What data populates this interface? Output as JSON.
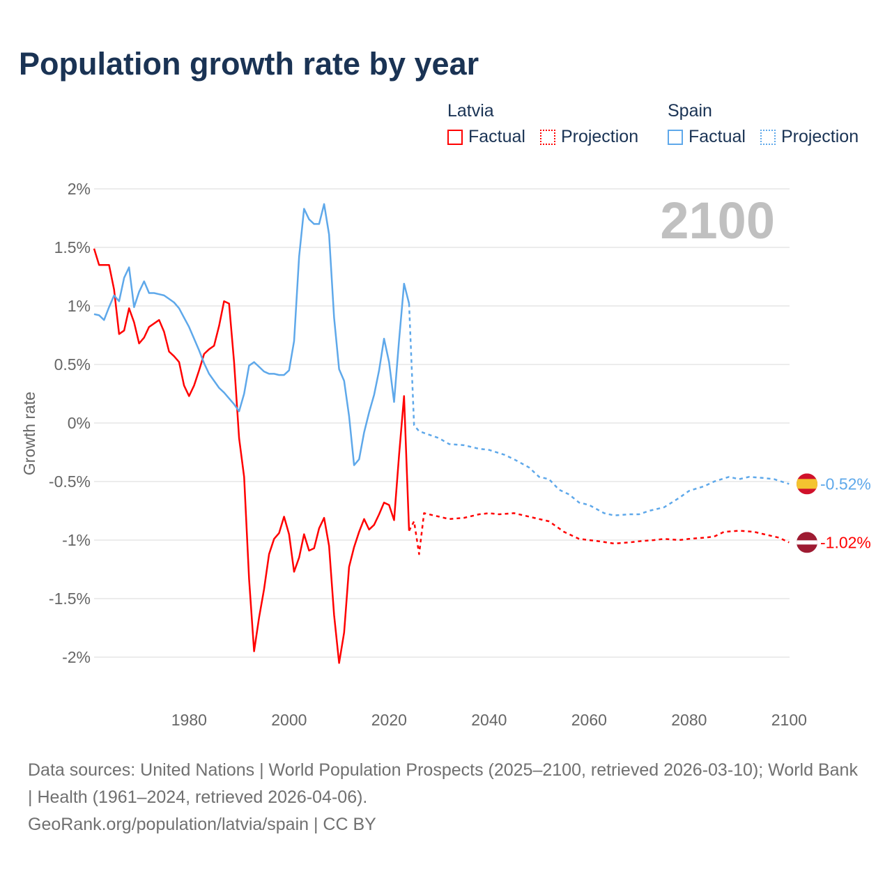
{
  "chart_data": {
    "type": "line",
    "title": "Population growth rate by year",
    "ylabel": "Growth rate",
    "xlabel": "",
    "xlim": [
      1961,
      2100
    ],
    "ylim": [
      -2.4,
      2.1
    ],
    "x_ticks": [
      1980,
      2000,
      2020,
      2040,
      2060,
      2080,
      2100
    ],
    "x_tick_labels": [
      "1980",
      "2000",
      "2020",
      "2040",
      "2060",
      "2080",
      "2100"
    ],
    "y_ticks": [
      2,
      1.5,
      1,
      0.5,
      0,
      -0.5,
      -1,
      -1.5,
      -2
    ],
    "y_tick_labels": [
      "2%",
      "1.5%",
      "1%",
      "0.5%",
      "0%",
      "-0.5%",
      "-1%",
      "-1.5%",
      "-2%"
    ],
    "grid": true,
    "year_watermark": "2100",
    "legend_placement": "top-right",
    "legend": {
      "groups": [
        {
          "name": "Latvia",
          "items": [
            "Factual",
            "Projection"
          ],
          "color": "#ff0000"
        },
        {
          "name": "Spain",
          "items": [
            "Factual",
            "Projection"
          ],
          "color": "#5ea8ea"
        }
      ]
    },
    "series": [
      {
        "name": "Latvia",
        "kind": "Factual",
        "color": "#ff0000",
        "x": [
          1961,
          1962,
          1963,
          1964,
          1965,
          1966,
          1967,
          1968,
          1969,
          1970,
          1971,
          1972,
          1973,
          1974,
          1975,
          1976,
          1977,
          1978,
          1979,
          1980,
          1981,
          1982,
          1983,
          1984,
          1985,
          1986,
          1987,
          1988,
          1989,
          1990,
          1991,
          1992,
          1993,
          1994,
          1995,
          1996,
          1997,
          1998,
          1999,
          2000,
          2001,
          2002,
          2003,
          2004,
          2005,
          2006,
          2007,
          2008,
          2009,
          2010,
          2011,
          2012,
          2013,
          2014,
          2015,
          2016,
          2017,
          2018,
          2019,
          2020,
          2021,
          2022,
          2023,
          2024
        ],
        "values": [
          1.49,
          1.35,
          1.35,
          1.35,
          1.14,
          0.76,
          0.79,
          0.98,
          0.86,
          0.68,
          0.73,
          0.82,
          0.85,
          0.88,
          0.78,
          0.61,
          0.57,
          0.52,
          0.32,
          0.23,
          0.32,
          0.45,
          0.59,
          0.63,
          0.66,
          0.83,
          1.04,
          1.02,
          0.52,
          -0.13,
          -0.46,
          -1.33,
          -1.95,
          -1.66,
          -1.42,
          -1.12,
          -0.99,
          -0.94,
          -0.8,
          -0.95,
          -1.27,
          -1.15,
          -0.95,
          -1.09,
          -1.07,
          -0.9,
          -0.81,
          -1.05,
          -1.64,
          -2.05,
          -1.79,
          -1.23,
          -1.06,
          -0.93,
          -0.82,
          -0.91,
          -0.87,
          -0.78,
          -0.68,
          -0.7,
          -0.83,
          -0.27,
          0.23,
          -0.92
        ]
      },
      {
        "name": "Latvia",
        "kind": "Projection",
        "color": "#ff0000",
        "x": [
          2024,
          2025,
          2026,
          2027,
          2030,
          2032,
          2035,
          2038,
          2040,
          2042,
          2045,
          2048,
          2050,
          2052,
          2055,
          2058,
          2060,
          2062,
          2065,
          2068,
          2070,
          2073,
          2075,
          2078,
          2080,
          2083,
          2085,
          2087,
          2090,
          2093,
          2095,
          2098,
          2100
        ],
        "values": [
          -0.92,
          -0.84,
          -1.12,
          -0.77,
          -0.8,
          -0.82,
          -0.81,
          -0.78,
          -0.77,
          -0.78,
          -0.77,
          -0.8,
          -0.82,
          -0.84,
          -0.93,
          -0.99,
          -1.0,
          -1.01,
          -1.03,
          -1.02,
          -1.01,
          -1.0,
          -0.99,
          -1.0,
          -0.99,
          -0.98,
          -0.97,
          -0.93,
          -0.92,
          -0.93,
          -0.95,
          -0.98,
          -1.02
        ]
      },
      {
        "name": "Spain",
        "kind": "Factual",
        "color": "#5ea8ea",
        "x": [
          1961,
          1962,
          1963,
          1964,
          1965,
          1966,
          1967,
          1968,
          1969,
          1970,
          1971,
          1972,
          1973,
          1974,
          1975,
          1976,
          1977,
          1978,
          1979,
          1980,
          1981,
          1982,
          1983,
          1984,
          1985,
          1986,
          1987,
          1988,
          1989,
          1990,
          1991,
          1992,
          1993,
          1994,
          1995,
          1996,
          1997,
          1998,
          1999,
          2000,
          2001,
          2002,
          2003,
          2004,
          2005,
          2006,
          2007,
          2008,
          2009,
          2010,
          2011,
          2012,
          2013,
          2014,
          2015,
          2016,
          2017,
          2018,
          2019,
          2020,
          2021,
          2022,
          2023,
          2024
        ],
        "values": [
          0.93,
          0.92,
          0.88,
          0.99,
          1.09,
          1.04,
          1.24,
          1.33,
          0.99,
          1.12,
          1.21,
          1.11,
          1.11,
          1.1,
          1.09,
          1.06,
          1.03,
          0.98,
          0.9,
          0.82,
          0.72,
          0.62,
          0.51,
          0.42,
          0.36,
          0.3,
          0.26,
          0.21,
          0.16,
          0.1,
          0.25,
          0.49,
          0.52,
          0.48,
          0.44,
          0.42,
          0.42,
          0.41,
          0.41,
          0.45,
          0.7,
          1.42,
          1.83,
          1.74,
          1.7,
          1.7,
          1.87,
          1.61,
          0.9,
          0.46,
          0.36,
          0.06,
          -0.36,
          -0.31,
          -0.08,
          0.09,
          0.24,
          0.45,
          0.72,
          0.52,
          0.18,
          0.71,
          1.19,
          1.02
        ]
      },
      {
        "name": "Spain",
        "kind": "Projection",
        "color": "#5ea8ea",
        "x": [
          2024,
          2025,
          2026,
          2028,
          2030,
          2032,
          2035,
          2038,
          2040,
          2043,
          2045,
          2048,
          2050,
          2052,
          2054,
          2056,
          2058,
          2060,
          2063,
          2065,
          2068,
          2070,
          2072,
          2075,
          2078,
          2080,
          2083,
          2085,
          2088,
          2090,
          2092,
          2095,
          2097,
          2100
        ],
        "values": [
          1.02,
          -0.02,
          -0.07,
          -0.1,
          -0.13,
          -0.18,
          -0.19,
          -0.22,
          -0.23,
          -0.27,
          -0.31,
          -0.38,
          -0.46,
          -0.48,
          -0.57,
          -0.61,
          -0.68,
          -0.7,
          -0.77,
          -0.79,
          -0.78,
          -0.78,
          -0.75,
          -0.72,
          -0.64,
          -0.58,
          -0.54,
          -0.5,
          -0.46,
          -0.48,
          -0.46,
          -0.47,
          -0.48,
          -0.52
        ]
      }
    ],
    "end_labels": [
      {
        "country": "Spain",
        "label": "-0.52%",
        "value": -0.52,
        "color": "#5ea8ea",
        "flag": "spain-flag"
      },
      {
        "country": "Latvia",
        "label": "-1.02%",
        "value": -1.02,
        "color": "#ff0000",
        "flag": "latvia-flag"
      }
    ]
  },
  "footer": {
    "sources": "Data sources: United Nations | World Population Prospects (2025–2100, retrieved 2026-03-10); World Bank | Health (1961–2024, retrieved 2026-04-06).",
    "attribution": "GeoRank.org/population/latvia/spain | CC BY"
  }
}
